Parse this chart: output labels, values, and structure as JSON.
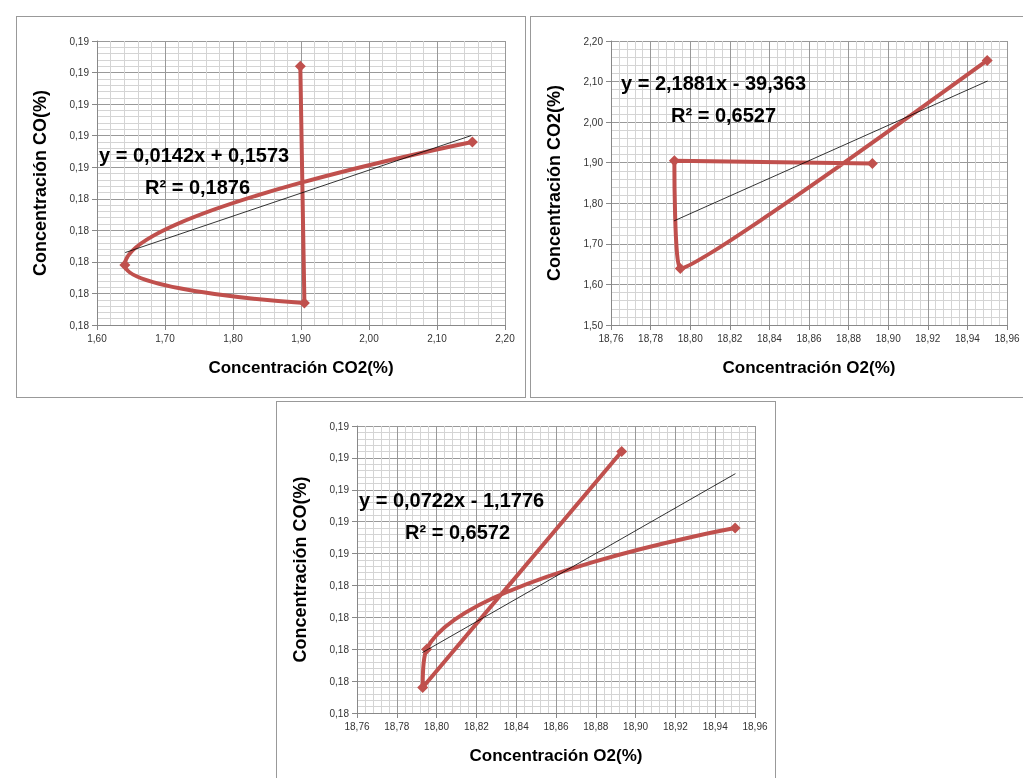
{
  "chart_data": [
    {
      "type": "line",
      "xlabel": "Concentración CO2(%)",
      "ylabel": "Concentración CO(%)",
      "annotations": [
        "y = 0,0142x + 0,1573",
        "R² = 0,1876"
      ],
      "grid": true,
      "marker": "diamond",
      "line_style": "solid",
      "xlim": [
        1.6,
        2.2
      ],
      "xticks": [
        {
          "value": 1.6,
          "label": "1,60"
        },
        {
          "value": 1.7,
          "label": "1,70"
        },
        {
          "value": 1.8,
          "label": "1,80"
        },
        {
          "value": 1.9,
          "label": "1,90"
        },
        {
          "value": 2.0,
          "label": "2,00"
        },
        {
          "value": 2.1,
          "label": "2,10"
        },
        {
          "value": 2.2,
          "label": "2,20"
        }
      ],
      "ylim": [
        0.18,
        0.189
      ],
      "yticks": [
        {
          "value": 0.18,
          "label": "0,18"
        },
        {
          "value": 0.181,
          "label": "0,18"
        },
        {
          "value": 0.182,
          "label": "0,18"
        },
        {
          "value": 0.183,
          "label": "0,18"
        },
        {
          "value": 0.184,
          "label": "0,18"
        },
        {
          "value": 0.185,
          "label": "0,19"
        },
        {
          "value": 0.186,
          "label": "0,19"
        },
        {
          "value": 0.187,
          "label": "0,19"
        },
        {
          "value": 0.188,
          "label": "0,19"
        },
        {
          "value": 0.189,
          "label": "0,19"
        }
      ],
      "series": [
        {
          "color": "#c0504d",
          "x": [
            1.899,
            1.905,
            1.641,
            2.152
          ],
          "values": [
            0.1882,
            0.1807,
            0.1819,
            0.1858
          ]
        },
        {
          "color": "#000000",
          "marker": "none",
          "x": [
            1.642,
            2.15
          ],
          "values": [
            0.1823,
            0.186
          ]
        }
      ]
    },
    {
      "type": "line",
      "xlabel": "Concentración O2(%)",
      "ylabel": "Concentración CO2(%)",
      "annotations": [
        "y = 2,1881x - 39,363",
        "R² = 0,6527"
      ],
      "grid": true,
      "marker": "diamond",
      "line_style": "solid",
      "xlim": [
        18.76,
        18.96
      ],
      "xticks": [
        {
          "value": 18.76,
          "label": "18,76"
        },
        {
          "value": 18.78,
          "label": "18,78"
        },
        {
          "value": 18.8,
          "label": "18,80"
        },
        {
          "value": 18.82,
          "label": "18,82"
        },
        {
          "value": 18.84,
          "label": "18,84"
        },
        {
          "value": 18.86,
          "label": "18,86"
        },
        {
          "value": 18.88,
          "label": "18,88"
        },
        {
          "value": 18.9,
          "label": "18,90"
        },
        {
          "value": 18.92,
          "label": "18,92"
        },
        {
          "value": 18.94,
          "label": "18,94"
        },
        {
          "value": 18.96,
          "label": "18,96"
        }
      ],
      "ylim": [
        1.5,
        2.2
      ],
      "yticks": [
        {
          "value": 1.5,
          "label": "1,50"
        },
        {
          "value": 1.6,
          "label": "1,60"
        },
        {
          "value": 1.7,
          "label": "1,70"
        },
        {
          "value": 1.8,
          "label": "1,80"
        },
        {
          "value": 1.9,
          "label": "1,90"
        },
        {
          "value": 2.0,
          "label": "2,00"
        },
        {
          "value": 2.1,
          "label": "2,10"
        },
        {
          "value": 2.2,
          "label": "2,20"
        }
      ],
      "series": [
        {
          "color": "#c0504d",
          "x": [
            18.892,
            18.792,
            18.795,
            18.95
          ],
          "values": [
            1.898,
            1.905,
            1.639,
            2.152
          ]
        },
        {
          "color": "#000000",
          "marker": "none",
          "x": [
            18.792,
            18.95
          ],
          "values": [
            1.757,
            2.101
          ]
        }
      ]
    },
    {
      "type": "line",
      "xlabel": "Concentración O2(%)",
      "ylabel": "Concentración CO(%)",
      "annotations": [
        "y = 0,0722x - 1,1776",
        "R² = 0,6572"
      ],
      "grid": true,
      "marker": "diamond",
      "line_style": "solid",
      "xlim": [
        18.76,
        18.96
      ],
      "xticks": [
        {
          "value": 18.76,
          "label": "18,76"
        },
        {
          "value": 18.78,
          "label": "18,78"
        },
        {
          "value": 18.8,
          "label": "18,80"
        },
        {
          "value": 18.82,
          "label": "18,82"
        },
        {
          "value": 18.84,
          "label": "18,84"
        },
        {
          "value": 18.86,
          "label": "18,86"
        },
        {
          "value": 18.88,
          "label": "18,88"
        },
        {
          "value": 18.9,
          "label": "18,90"
        },
        {
          "value": 18.92,
          "label": "18,92"
        },
        {
          "value": 18.94,
          "label": "18,94"
        },
        {
          "value": 18.96,
          "label": "18,96"
        }
      ],
      "ylim": [
        0.18,
        0.189
      ],
      "yticks": [
        {
          "value": 0.18,
          "label": "0,18"
        },
        {
          "value": 0.181,
          "label": "0,18"
        },
        {
          "value": 0.182,
          "label": "0,18"
        },
        {
          "value": 0.183,
          "label": "0,18"
        },
        {
          "value": 0.184,
          "label": "0,18"
        },
        {
          "value": 0.185,
          "label": "0,19"
        },
        {
          "value": 0.186,
          "label": "0,19"
        },
        {
          "value": 0.187,
          "label": "0,19"
        },
        {
          "value": 0.188,
          "label": "0,19"
        },
        {
          "value": 0.189,
          "label": "0,19"
        }
      ],
      "series": [
        {
          "color": "#c0504d",
          "x": [
            18.893,
            18.793,
            18.795,
            18.95
          ],
          "values": [
            0.1882,
            0.1808,
            0.182,
            0.1858
          ]
        },
        {
          "color": "#000000",
          "marker": "none",
          "x": [
            18.793,
            18.95
          ],
          "values": [
            0.1819,
            0.1875
          ]
        }
      ]
    }
  ]
}
